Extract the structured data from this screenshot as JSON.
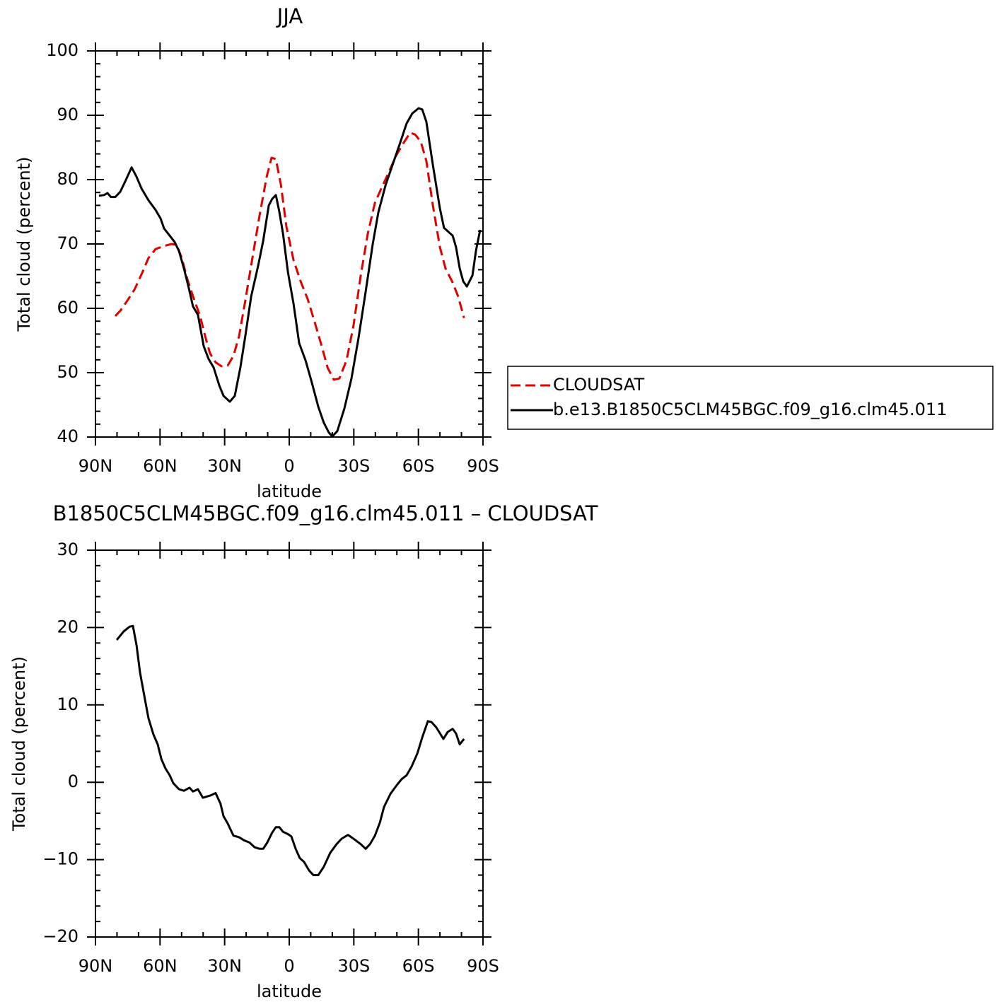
{
  "chart_data": [
    {
      "type": "line",
      "title": "JJA",
      "xlabel": "latitude",
      "ylabel": "Total cloud (percent)",
      "xlim": [
        90,
        -90
      ],
      "ylim": [
        40,
        100
      ],
      "xticks": [
        {
          "value": 90,
          "label": "90N"
        },
        {
          "value": 60,
          "label": "60N"
        },
        {
          "value": 30,
          "label": "30N"
        },
        0,
        {
          "value": -30,
          "label": "30S"
        },
        {
          "value": -60,
          "label": "60S"
        },
        {
          "value": -90,
          "label": "90S"
        }
      ],
      "xminorticks": [
        80,
        70,
        50,
        40,
        20,
        10,
        -10,
        -20,
        -40,
        -50,
        -70,
        -80
      ],
      "yticks": [
        40,
        50,
        60,
        70,
        80,
        90,
        100
      ],
      "yminorticks": [
        42,
        44,
        46,
        48,
        52,
        54,
        56,
        58,
        62,
        64,
        66,
        68,
        72,
        74,
        76,
        78,
        82,
        84,
        86,
        88,
        92,
        94,
        96,
        98
      ],
      "legend": "right",
      "series": [
        {
          "name": "CLOUDSAT",
          "color": "#e00000",
          "dash": "dashed",
          "x": [
            80.8,
            78.5,
            75.2,
            71.9,
            68.6,
            65.4,
            62.1,
            58.1,
            54.5,
            52.2,
            49.9,
            47.3,
            44.0,
            41.4,
            39.1,
            36.8,
            34.2,
            31.5,
            28.6,
            25.9,
            23.3,
            20.4,
            17.1,
            13.8,
            10.5,
            8.2,
            6.2,
            3.9,
            1.3,
            -2.0,
            -5.3,
            -8.6,
            -11.8,
            -15.1,
            -17.8,
            -20.7,
            -23.3,
            -26.6,
            -29.9,
            -33.2,
            -36.5,
            -39.8,
            -43.0,
            -46.3,
            -49.6,
            -52.9,
            -56.2,
            -58.5,
            -61.1,
            -63.7,
            -66.7,
            -70.0,
            -72.6,
            -75.9,
            -78.5,
            -81.2
          ],
          "values": [
            58.8,
            59.6,
            61.2,
            62.9,
            65.3,
            67.8,
            69.2,
            69.7,
            70.0,
            69.8,
            67.8,
            64.5,
            61.2,
            58.8,
            55.7,
            53.0,
            51.6,
            51.0,
            51.1,
            52.6,
            55.7,
            61.2,
            67.8,
            74.4,
            80.4,
            83.4,
            83.2,
            79.3,
            72.7,
            67.5,
            64.2,
            61.4,
            57.9,
            54.1,
            50.8,
            48.9,
            49.1,
            51.9,
            57.4,
            65.1,
            71.6,
            76.4,
            78.8,
            81.2,
            83.7,
            85.6,
            87.3,
            87.0,
            85.9,
            82.9,
            76.0,
            69.5,
            66.2,
            64.0,
            61.8,
            58.5
          ]
        },
        {
          "name": "b.e13.B1850C5CLM45BGC.f09_g16.clm45.011",
          "color": "#000000",
          "dash": "solid",
          "x": [
            88.4,
            86,
            84.4,
            82.8,
            80.8,
            78.5,
            76.2,
            73.2,
            71,
            68.6,
            65.4,
            62.1,
            59.8,
            58.1,
            55.5,
            53.2,
            51.2,
            48.9,
            46.6,
            44.7,
            42.4,
            39.7,
            37.4,
            35.1,
            32.5,
            30.5,
            27.6,
            25.3,
            22.7,
            20.4,
            17.7,
            14.4,
            12.1,
            9.5,
            7.9,
            6.2,
            4.6,
            2.9,
            0.6,
            -2.0,
            -4.6,
            -7.6,
            -10.2,
            -13.5,
            -16.1,
            -18.4,
            -20.0,
            -22.3,
            -25.6,
            -28.9,
            -32.2,
            -35.5,
            -38.8,
            -41.4,
            -44.7,
            -48.0,
            -51.3,
            -54.5,
            -57.2,
            -60.1,
            -61.8,
            -63.7,
            -66.7,
            -70.0,
            -71.9,
            -75.9,
            -77.5,
            -79.2,
            -80.8,
            -82.5,
            -85.1,
            -86.7,
            -88.7
          ],
          "values": [
            77.5,
            77.6,
            77.9,
            77.3,
            77.3,
            78.1,
            79.7,
            81.9,
            80.5,
            78.6,
            76.8,
            75.3,
            74.0,
            72.4,
            71.3,
            70.3,
            68.9,
            66.2,
            63.1,
            60.3,
            59.0,
            54.1,
            52.1,
            50.8,
            48.0,
            46.4,
            45.5,
            46.4,
            50.8,
            55.7,
            61.8,
            66.7,
            70.5,
            76.0,
            77.0,
            77.6,
            75.0,
            71.6,
            65.6,
            60.7,
            54.6,
            51.9,
            48.8,
            44.7,
            42.2,
            40.7,
            40.1,
            40.9,
            44.4,
            49.1,
            55.4,
            62.6,
            70.0,
            74.9,
            79.1,
            82.3,
            85.5,
            88.7,
            90.3,
            91.1,
            90.9,
            89.0,
            82.3,
            75.5,
            72.5,
            71.3,
            69.5,
            66.2,
            64.2,
            63.4,
            65.1,
            68.9,
            72.2
          ]
        }
      ]
    },
    {
      "type": "line",
      "title": "B1850C5CLM45BGC.f09_g16.clm45.011 – CLOUDSAT",
      "xlabel": "latitude",
      "ylabel": "Total cloud (percent)",
      "xlim": [
        90,
        -90
      ],
      "ylim": [
        -20,
        30
      ],
      "xticks": [
        {
          "value": 90,
          "label": "90N"
        },
        {
          "value": 60,
          "label": "60N"
        },
        {
          "value": 30,
          "label": "30N"
        },
        0,
        {
          "value": -30,
          "label": "30S"
        },
        {
          "value": -60,
          "label": "60S"
        },
        {
          "value": -90,
          "label": "90S"
        }
      ],
      "xminorticks": [
        80,
        70,
        50,
        40,
        20,
        10,
        -10,
        -20,
        -40,
        -50,
        -70,
        -80
      ],
      "yticks": [
        {
          "value": -20,
          "label": "−20"
        },
        {
          "value": -10,
          "label": "−10"
        },
        0,
        10,
        20,
        30
      ],
      "yminorticks": [
        -18,
        -16,
        -14,
        -12,
        -8,
        -6,
        -4,
        -2,
        2,
        4,
        6,
        8,
        12,
        14,
        16,
        18,
        22,
        24,
        26,
        28
      ],
      "series": [
        {
          "color": "#000000",
          "dash": "solid",
          "x": [
            80.1,
            76.9,
            74.2,
            72.6,
            70.9,
            69.3,
            67.0,
            65.4,
            63.1,
            61.1,
            59.4,
            57.5,
            55.5,
            53.9,
            51.2,
            48.9,
            46.3,
            44.7,
            42.4,
            40.1,
            36.5,
            34.2,
            31.9,
            30.5,
            28.6,
            25.9,
            23.3,
            21.0,
            18.4,
            16.1,
            13.8,
            12.1,
            10.2,
            7.9,
            6.2,
            4.6,
            2.9,
            0.6,
            -1.0,
            -3.0,
            -4.9,
            -6.9,
            -9.2,
            -11.2,
            -13.5,
            -16.1,
            -19.1,
            -22.0,
            -24.3,
            -27.3,
            -29.9,
            -33.2,
            -35.5,
            -37.5,
            -39.8,
            -42.1,
            -44.0,
            -47.0,
            -49.6,
            -52.2,
            -54.5,
            -56.8,
            -59.5,
            -61.8,
            -64.4,
            -66.0,
            -68.3,
            -71.6,
            -73.6,
            -75.9,
            -77.5,
            -79.2,
            -81.2
          ],
          "values": [
            18.4,
            19.5,
            20.1,
            20.2,
            17.7,
            14.2,
            10.7,
            8.3,
            6.2,
            4.9,
            3.0,
            1.8,
            0.9,
            -0.1,
            -0.9,
            -1.1,
            -0.7,
            -1.2,
            -0.9,
            -2.0,
            -1.7,
            -1.4,
            -2.8,
            -4.4,
            -5.3,
            -6.9,
            -7.1,
            -7.5,
            -7.8,
            -8.4,
            -8.6,
            -8.6,
            -7.8,
            -6.5,
            -5.8,
            -5.8,
            -6.4,
            -6.7,
            -7.0,
            -8.6,
            -9.8,
            -10.3,
            -11.4,
            -12.0,
            -12.0,
            -10.9,
            -9.1,
            -8.0,
            -7.3,
            -6.8,
            -7.3,
            -8.0,
            -8.6,
            -8.0,
            -6.9,
            -5.2,
            -3.2,
            -1.5,
            -0.5,
            0.4,
            0.9,
            2.0,
            3.7,
            5.8,
            7.9,
            7.8,
            7.1,
            5.6,
            6.5,
            6.9,
            6.3,
            4.9,
            5.6
          ]
        }
      ]
    }
  ]
}
